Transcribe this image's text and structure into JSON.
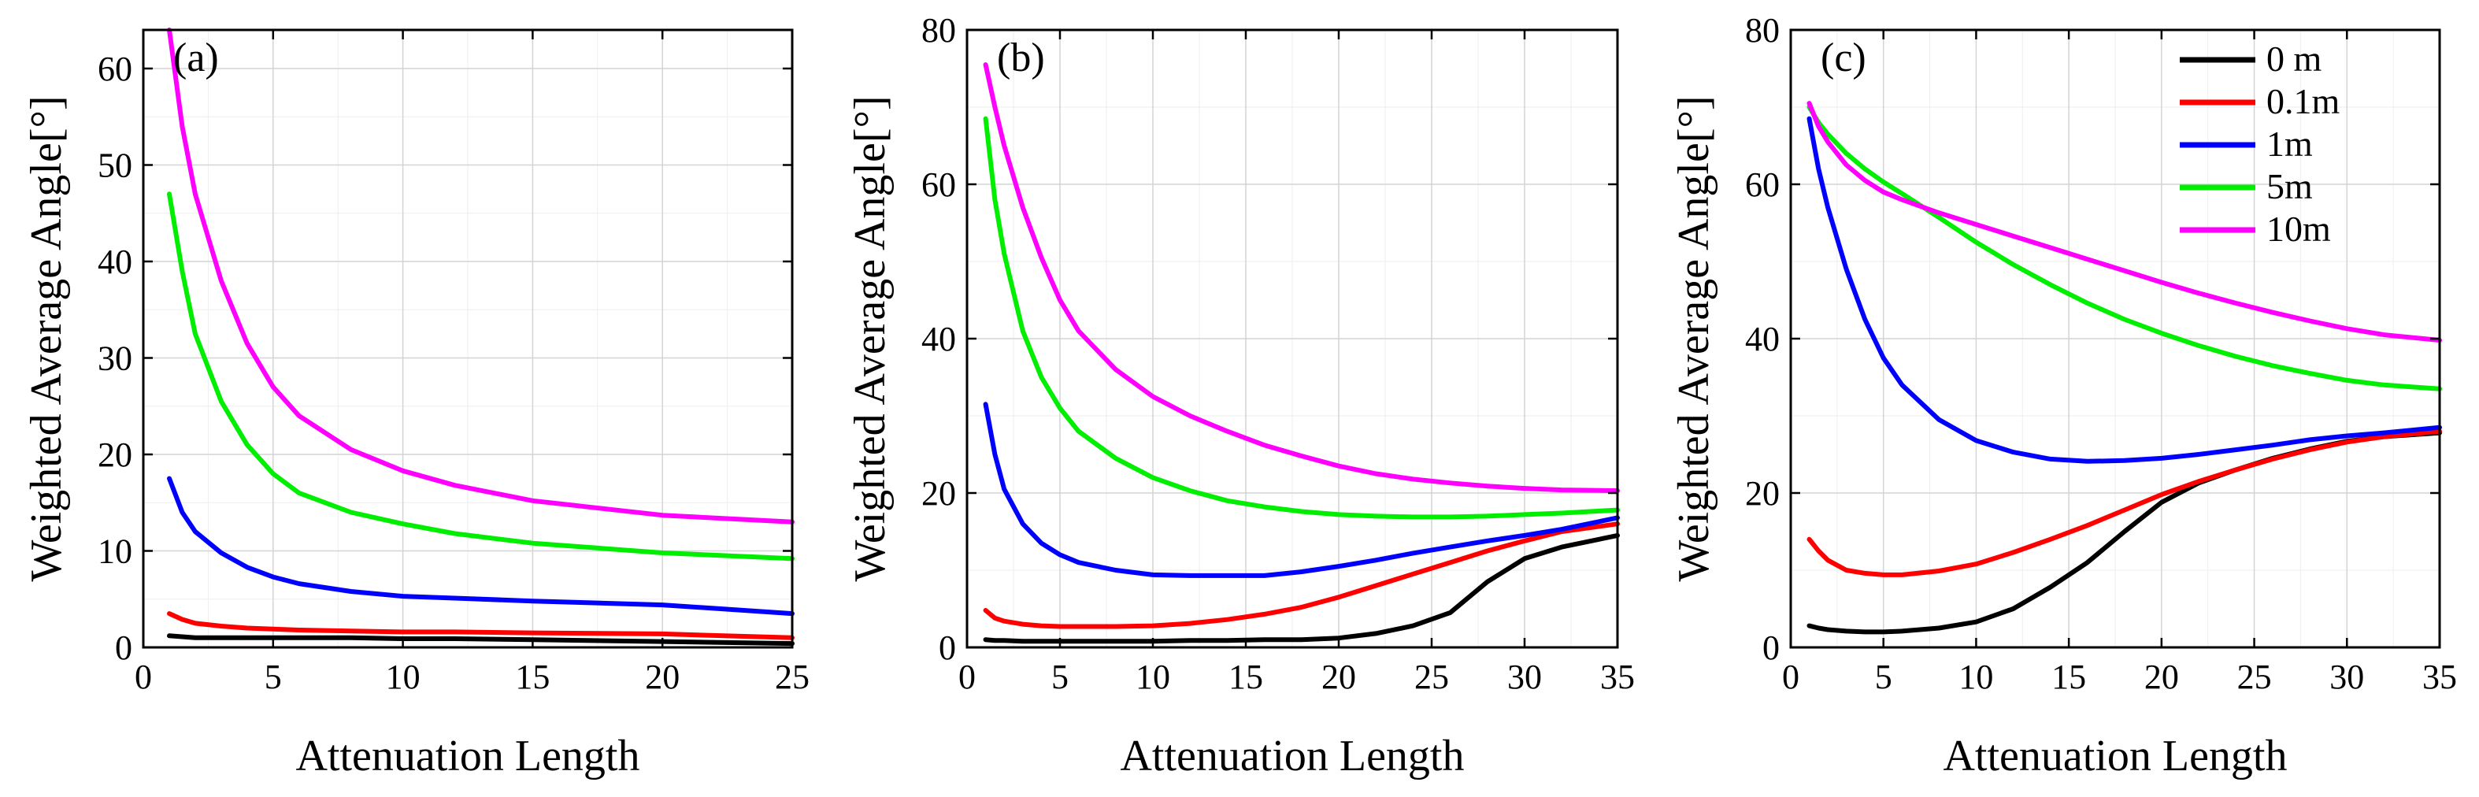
{
  "chart_data": [
    {
      "type": "line",
      "panel_label": "(a)",
      "xlabel": "Attenuation Length",
      "ylabel": "Weighted Average Angle[°]",
      "xlim": [
        0,
        25
      ],
      "ylim": [
        0,
        64
      ],
      "xticks": [
        0,
        5,
        10,
        15,
        20,
        25
      ],
      "yticks": [
        0,
        10,
        20,
        30,
        40,
        50,
        60
      ],
      "x": [
        1,
        1.5,
        2,
        3,
        4,
        5,
        6,
        8,
        10,
        12,
        15,
        20,
        25
      ],
      "series": [
        {
          "name": "0 m",
          "color": "#000000",
          "values": [
            1.2,
            1.1,
            1.0,
            1.0,
            1.0,
            1.0,
            1.0,
            1.0,
            0.9,
            0.9,
            0.8,
            0.6,
            0.4
          ]
        },
        {
          "name": "0.1m",
          "color": "#ff0000",
          "values": [
            3.5,
            2.9,
            2.5,
            2.2,
            2.0,
            1.9,
            1.8,
            1.7,
            1.6,
            1.6,
            1.5,
            1.4,
            1.0
          ]
        },
        {
          "name": "1m",
          "color": "#0000ff",
          "values": [
            17.5,
            14.0,
            12.0,
            9.8,
            8.3,
            7.3,
            6.6,
            5.8,
            5.3,
            5.1,
            4.8,
            4.4,
            3.5
          ]
        },
        {
          "name": "5m",
          "color": "#00ee00",
          "values": [
            47.0,
            39.0,
            32.5,
            25.5,
            21.0,
            18.0,
            16.0,
            14.0,
            12.8,
            11.8,
            10.8,
            9.8,
            9.2
          ]
        },
        {
          "name": "10m",
          "color": "#ff00ff",
          "values": [
            64.0,
            54.0,
            47.0,
            38.0,
            31.5,
            27.0,
            24.0,
            20.5,
            18.3,
            16.8,
            15.2,
            13.7,
            13.0
          ]
        }
      ]
    },
    {
      "type": "line",
      "panel_label": "(b)",
      "xlabel": "Attenuation Length",
      "ylabel": "Weighted Average Angle[°]",
      "xlim": [
        0,
        35
      ],
      "ylim": [
        0,
        80
      ],
      "xticks": [
        0,
        5,
        10,
        15,
        20,
        25,
        30,
        35
      ],
      "yticks": [
        0,
        20,
        40,
        60,
        80
      ],
      "x": [
        1,
        1.5,
        2,
        3,
        4,
        5,
        6,
        8,
        10,
        12,
        14,
        16,
        18,
        20,
        22,
        24,
        26,
        28,
        30,
        32,
        35
      ],
      "series": [
        {
          "name": "0 m",
          "color": "#000000",
          "values": [
            1.0,
            0.9,
            0.9,
            0.8,
            0.8,
            0.8,
            0.8,
            0.8,
            0.8,
            0.9,
            0.9,
            1.0,
            1.0,
            1.2,
            1.8,
            2.8,
            4.5,
            8.5,
            11.5,
            13.0,
            14.5
          ]
        },
        {
          "name": "0.1m",
          "color": "#ff0000",
          "values": [
            4.8,
            3.8,
            3.4,
            3.0,
            2.8,
            2.7,
            2.7,
            2.7,
            2.8,
            3.1,
            3.6,
            4.3,
            5.2,
            6.5,
            8.0,
            9.5,
            11.0,
            12.5,
            13.8,
            15.0,
            16.0
          ]
        },
        {
          "name": "1m",
          "color": "#0000ff",
          "values": [
            31.5,
            25.0,
            20.5,
            16.0,
            13.5,
            12.0,
            11.0,
            10.0,
            9.4,
            9.3,
            9.3,
            9.3,
            9.8,
            10.5,
            11.3,
            12.2,
            13.0,
            13.8,
            14.5,
            15.3,
            16.8
          ]
        },
        {
          "name": "5m",
          "color": "#00ee00",
          "values": [
            68.5,
            58.0,
            51.0,
            41.0,
            35.0,
            31.0,
            28.0,
            24.5,
            22.0,
            20.3,
            19.0,
            18.2,
            17.6,
            17.2,
            17.0,
            16.9,
            16.9,
            17.0,
            17.2,
            17.4,
            17.8
          ]
        },
        {
          "name": "10m",
          "color": "#ff00ff",
          "values": [
            75.5,
            70.0,
            65.0,
            57.0,
            50.5,
            45.0,
            41.0,
            36.0,
            32.5,
            30.0,
            28.0,
            26.2,
            24.8,
            23.5,
            22.5,
            21.8,
            21.3,
            20.9,
            20.6,
            20.4,
            20.3
          ]
        }
      ]
    },
    {
      "type": "line",
      "panel_label": "(c)",
      "xlabel": "Attenuation Length",
      "ylabel": "Weighted Average Angle[°]",
      "xlim": [
        0,
        35
      ],
      "ylim": [
        0,
        80
      ],
      "xticks": [
        0,
        5,
        10,
        15,
        20,
        25,
        30,
        35
      ],
      "yticks": [
        0,
        20,
        40,
        60,
        80
      ],
      "legend": {
        "position": "top-right",
        "entries": [
          "0 m",
          "0.1m",
          "1m",
          "5m",
          "10m"
        ]
      },
      "x": [
        1,
        1.5,
        2,
        3,
        4,
        5,
        6,
        8,
        10,
        12,
        14,
        16,
        18,
        20,
        22,
        24,
        26,
        28,
        30,
        32,
        35
      ],
      "series": [
        {
          "name": "0 m",
          "color": "#000000",
          "values": [
            2.8,
            2.5,
            2.3,
            2.1,
            2.0,
            2.0,
            2.1,
            2.5,
            3.3,
            5.0,
            7.8,
            11.0,
            15.0,
            18.8,
            21.3,
            23.0,
            24.5,
            25.7,
            26.7,
            27.3,
            27.8
          ]
        },
        {
          "name": "0.1m",
          "color": "#ff0000",
          "values": [
            14.0,
            12.5,
            11.3,
            10.0,
            9.6,
            9.4,
            9.4,
            9.9,
            10.8,
            12.3,
            14.0,
            15.8,
            17.8,
            19.8,
            21.5,
            23.0,
            24.4,
            25.6,
            26.6,
            27.3,
            28.0
          ]
        },
        {
          "name": "1m",
          "color": "#0000ff",
          "values": [
            68.5,
            62.0,
            57.0,
            49.0,
            42.5,
            37.5,
            34.0,
            29.5,
            26.8,
            25.3,
            24.4,
            24.1,
            24.2,
            24.5,
            25.0,
            25.6,
            26.2,
            26.9,
            27.4,
            27.8,
            28.5
          ]
        },
        {
          "name": "5m",
          "color": "#00ee00",
          "values": [
            70.0,
            68.0,
            66.5,
            64.0,
            62.0,
            60.3,
            58.8,
            55.7,
            52.5,
            49.6,
            47.0,
            44.6,
            42.5,
            40.7,
            39.1,
            37.7,
            36.5,
            35.5,
            34.6,
            34.0,
            33.5
          ]
        },
        {
          "name": "10m",
          "color": "#ff00ff",
          "values": [
            70.5,
            67.5,
            65.5,
            62.5,
            60.5,
            59.0,
            58.0,
            56.3,
            54.8,
            53.3,
            51.8,
            50.3,
            48.8,
            47.3,
            45.9,
            44.6,
            43.4,
            42.3,
            41.3,
            40.5,
            39.8
          ]
        }
      ]
    }
  ]
}
